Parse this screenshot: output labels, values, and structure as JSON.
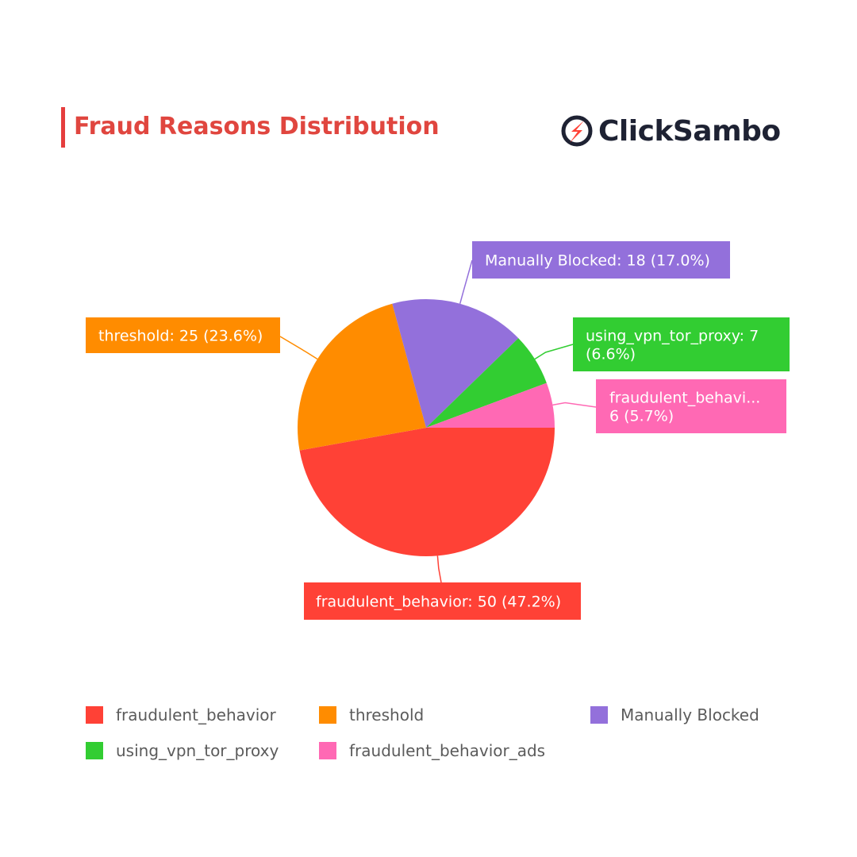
{
  "header": {
    "title": "Fraud Reasons Distribution",
    "title_color": "#e0463f",
    "logo_text": "ClickSambo",
    "logo_icon": "clicksambo-logo-icon"
  },
  "chart_data": {
    "type": "pie",
    "title": "Fraud Reasons Distribution",
    "grid": false,
    "legend_position": "bottom",
    "slices": [
      {
        "name": "fraudulent_behavior",
        "value": 50,
        "percent": 47.2,
        "color": "#ff4136",
        "label_lines": [
          "fraudulent_behavior: 50 (47.2%)"
        ]
      },
      {
        "name": "threshold",
        "value": 25,
        "percent": 23.6,
        "color": "#ff8c00",
        "label_lines": [
          "threshold: 25 (23.6%)"
        ]
      },
      {
        "name": "Manually Blocked",
        "value": 18,
        "percent": 17.0,
        "color": "#9370db",
        "label_lines": [
          "Manually Blocked: 18 (17.0%)"
        ]
      },
      {
        "name": "using_vpn_tor_proxy",
        "value": 7,
        "percent": 6.6,
        "color": "#32cd32",
        "label_lines": [
          "using_vpn_tor_proxy: 7",
          "(6.6%)"
        ]
      },
      {
        "name": "fraudulent_behavior_ads",
        "value": 6,
        "percent": 5.7,
        "color": "#ff69b4",
        "label_lines": [
          "fraudulent_behavi...",
          "6 (5.7%)"
        ]
      }
    ]
  },
  "legend": {
    "items": [
      {
        "label": "fraudulent_behavior",
        "color": "#ff4136"
      },
      {
        "label": "threshold",
        "color": "#ff8c00"
      },
      {
        "label": "Manually Blocked",
        "color": "#9370db"
      },
      {
        "label": "using_vpn_tor_proxy",
        "color": "#32cd32"
      },
      {
        "label": "fraudulent_behavior_ads",
        "color": "#ff69b4"
      }
    ]
  }
}
